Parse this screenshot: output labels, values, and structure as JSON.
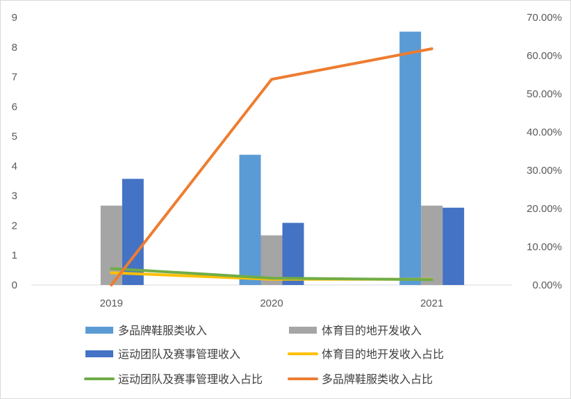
{
  "chart_data": {
    "type": "bar",
    "title": "",
    "xlabel": "",
    "ylabel": "",
    "categories": [
      "2019",
      "2020",
      "2021"
    ],
    "ylim": [
      0,
      9
    ],
    "y_ticks": [
      "0",
      "1",
      "2",
      "3",
      "4",
      "5",
      "6",
      "7",
      "8",
      "9"
    ],
    "y2lim": [
      0,
      0.7
    ],
    "y2_ticks": [
      "0.00%",
      "10.00%",
      "20.00%",
      "30.00%",
      "40.00%",
      "50.00%",
      "60.00%",
      "70.00%"
    ],
    "grid": false,
    "legend_position": "bottom",
    "bar_series": [
      {
        "name": "多品牌鞋服类收入",
        "color": "#5b9bd5",
        "values": [
          0,
          4.38,
          8.52
        ]
      },
      {
        "name": "体育目的地开发收入",
        "color": "#a5a5a5",
        "values": [
          2.67,
          1.67,
          2.67
        ]
      },
      {
        "name": "运动团队及赛事管理收入",
        "color": "#4472c4",
        "values": [
          3.57,
          2.09,
          2.6
        ]
      }
    ],
    "line_series": [
      {
        "name": "体育目的地开发收入占比",
        "color": "#ffc000",
        "axis": "right",
        "values": [
          0.032,
          0.015,
          0.015
        ]
      },
      {
        "name": "运动团队及赛事管理收入占比",
        "color": "#70ad47",
        "axis": "right",
        "values": [
          0.043,
          0.018,
          0.014
        ]
      },
      {
        "name": "多品牌鞋服类收入占比",
        "color": "#ed7d31",
        "axis": "right",
        "values": [
          0.0,
          0.538,
          0.618
        ]
      }
    ],
    "legend": [
      {
        "label": "多品牌鞋服类收入",
        "kind": "bar",
        "color": "#5b9bd5"
      },
      {
        "label": "体育目的地开发收入",
        "kind": "bar",
        "color": "#a5a5a5"
      },
      {
        "label": "运动团队及赛事管理收入",
        "kind": "bar",
        "color": "#4472c4"
      },
      {
        "label": "体育目的地开发收入占比",
        "kind": "line",
        "color": "#ffc000"
      },
      {
        "label": "运动团队及赛事管理收入占比",
        "kind": "line",
        "color": "#70ad47"
      },
      {
        "label": "多品牌鞋服类收入占比",
        "kind": "line",
        "color": "#ed7d31"
      }
    ]
  }
}
